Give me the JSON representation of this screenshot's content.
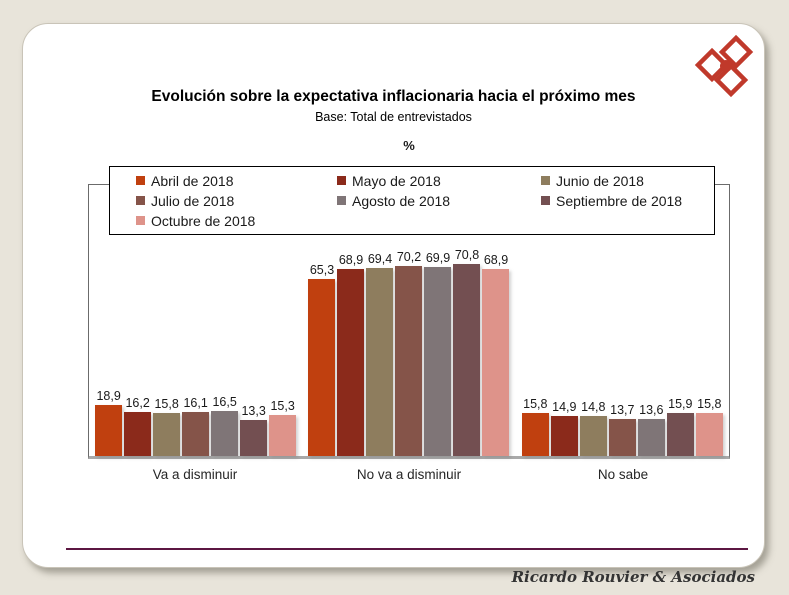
{
  "page": {
    "background_color": "#E8E4DA",
    "card_color": "#FFFFFF"
  },
  "header": {
    "title": "Evolución sobre la expectativa inflacionaria hacia el próximo mes",
    "subtitle": "Base: Total de entrevistados",
    "unit_label": "%"
  },
  "logo": {
    "description": "three-overlapping-diamonds-with-dot",
    "color": "#C0392B"
  },
  "chart_data": {
    "type": "bar",
    "categories": [
      "Va a disminuir",
      "No va a disminuir",
      "No sabe"
    ],
    "series": [
      {
        "name": "Abril de 2018",
        "color": "#C0400F",
        "values": [
          18.9,
          65.3,
          15.8
        ]
      },
      {
        "name": "Mayo de 2018",
        "color": "#8B2A1B",
        "values": [
          16.2,
          68.9,
          14.9
        ]
      },
      {
        "name": "Junio de 2018",
        "color": "#8E7D5E",
        "values": [
          15.8,
          69.4,
          14.8
        ]
      },
      {
        "name": "Julio de 2018",
        "color": "#855449",
        "values": [
          16.1,
          70.2,
          13.7
        ]
      },
      {
        "name": "Agosto de 2018",
        "color": "#7F7577",
        "values": [
          16.5,
          69.9,
          13.6
        ]
      },
      {
        "name": "Septiembre de 2018",
        "color": "#734F51",
        "values": [
          13.3,
          70.8,
          15.9
        ]
      },
      {
        "name": "Octubre de 2018",
        "color": "#DE938A",
        "values": [
          15.3,
          68.9,
          15.8
        ]
      }
    ],
    "value_label_decimal_separator": ",",
    "ylim": [
      0,
      100
    ],
    "grid": false,
    "legend_position": "top"
  },
  "footer": {
    "credit": "Ricardo Rouvier & Asociados",
    "rule_color": "#5C1742"
  }
}
